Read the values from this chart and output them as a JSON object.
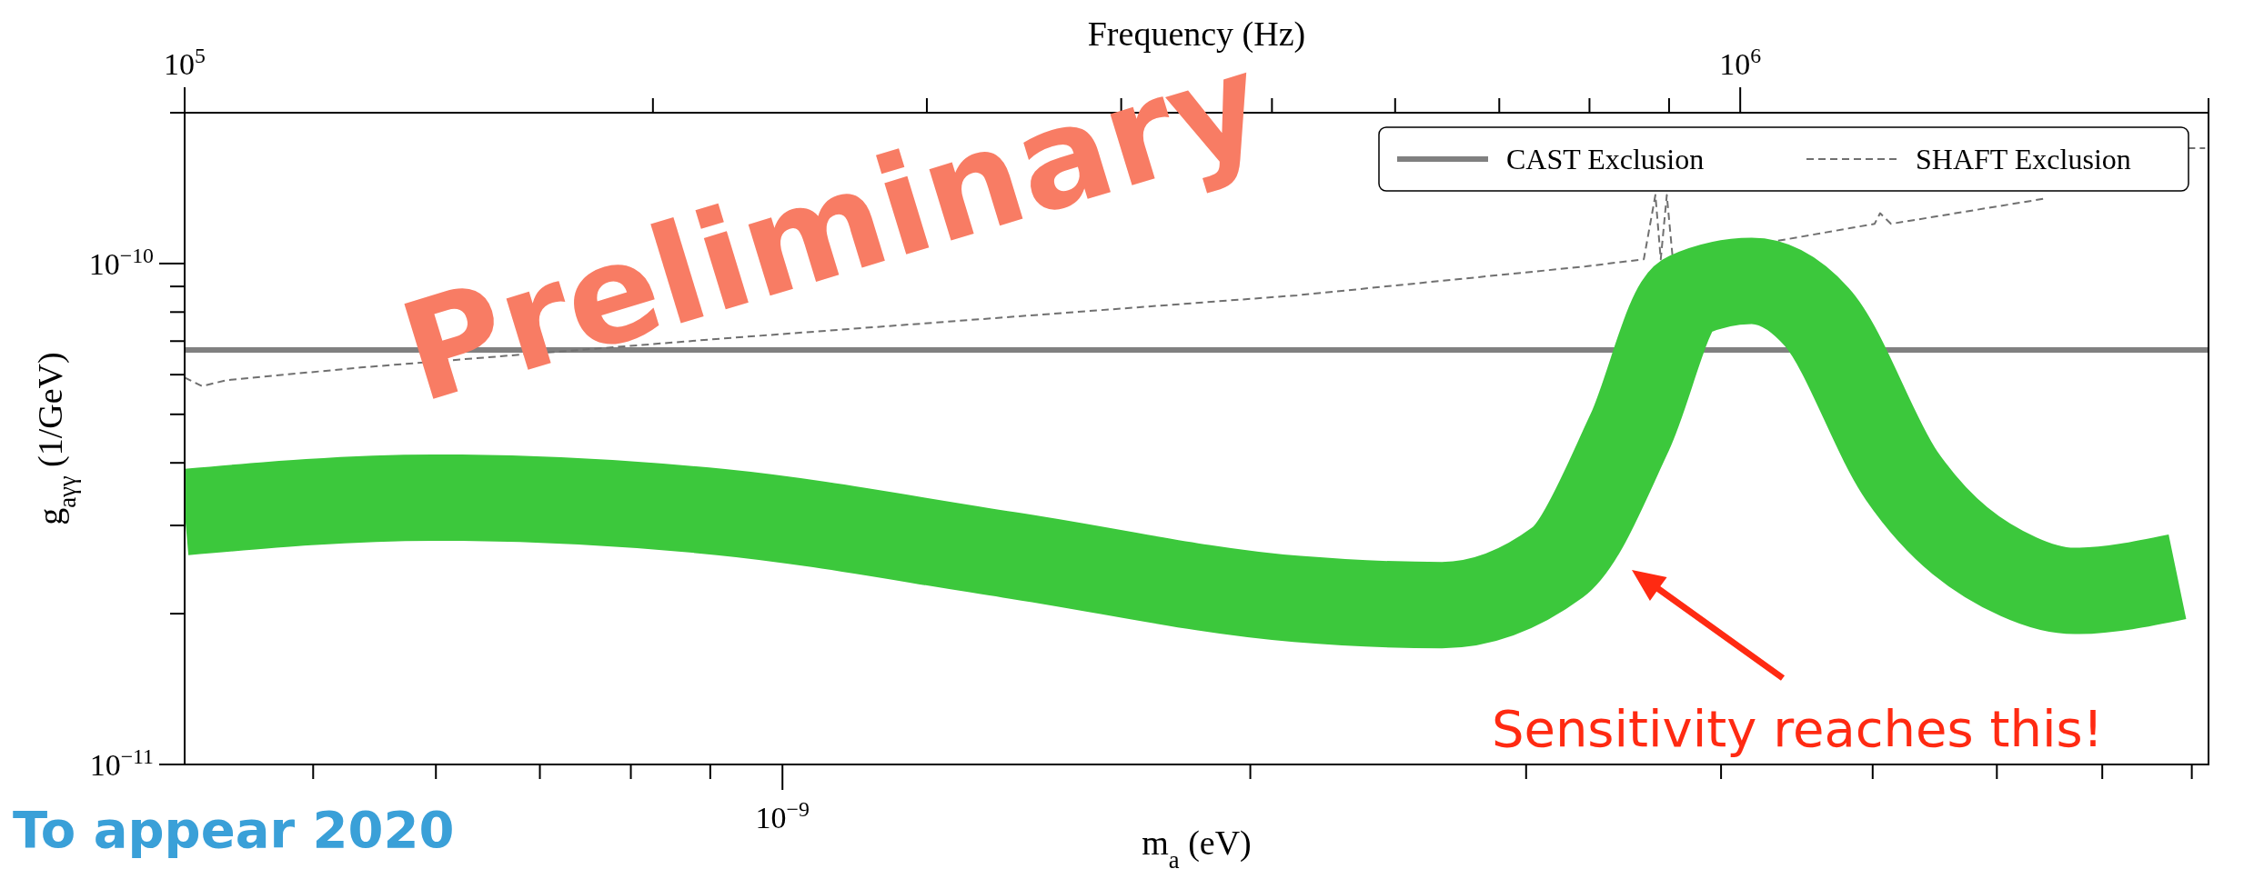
{
  "chart_data": {
    "type": "line",
    "xlabel": "Frequency (Hz)",
    "ylabel": "g$_{aγγ}$ (1/GeV)",
    "x2label": "m$_{a}$ (eV)",
    "log": "xy",
    "legend": "top right",
    "grid": false,
    "xlim": [
      100000.0,
      2000000.0
    ],
    "xticks": [
      {
        "value": 100000.0,
        "label": "10$^{5}$"
      },
      {
        "value": 200000.0,
        "label": null
      },
      {
        "value": 300000.0,
        "label": null
      },
      {
        "value": 400000.0,
        "label": null
      },
      {
        "value": 500000.0,
        "label": null
      },
      {
        "value": 600000.0,
        "label": null
      },
      {
        "value": 700000.0,
        "label": null
      },
      {
        "value": 800000.0,
        "label": null
      },
      {
        "value": 900000.0,
        "label": null
      },
      {
        "value": 1000000.0,
        "label": "10$^{6}$"
      },
      {
        "value": 2000000.0,
        "label": null
      }
    ],
    "ylim": [
      1e-11,
      2e-10
    ],
    "yticks": [
      {
        "value": 1e-11,
        "label": "10$^{−11}$"
      },
      {
        "value": 2e-11,
        "label": null
      },
      {
        "value": 3e-11,
        "label": null
      },
      {
        "value": 4e-11,
        "label": null
      },
      {
        "value": 5e-11,
        "label": null
      },
      {
        "value": 6e-11,
        "label": null
      },
      {
        "value": 7e-11,
        "label": null
      },
      {
        "value": 8e-11,
        "label": null
      },
      {
        "value": 9e-11,
        "label": null
      },
      {
        "value": 1e-10,
        "label": "10$^{−10}$"
      },
      {
        "value": 2e-10,
        "label": null
      }
    ],
    "series": [
      {
        "name": "CAST Exclusion",
        "color": "#808080",
        "line_style": "solid",
        "x": [
          100000.0,
          2000000.0
        ],
        "values": [
          6.72e-11,
          6.72e-11
        ]
      },
      {
        "name": "SHAFT Exclusion",
        "color": "#707070",
        "line_style": "dashed",
        "x": [
          100000.0,
          102600.0,
          106400.0,
          129700.0,
          221200.0,
          339000.0,
          519000.0,
          796000.0,
          867000.0,
          882000.0,
          889000.0,
          897000.0,
          905000.0,
          1220000.0,
          1230000.0,
          1250000.0,
          1575000.0,
          1750000.0,
          1940000.0,
          1990000.0
        ],
        "values": [
          5.92e-11,
          5.69e-11,
          5.85e-11,
          6.2e-11,
          7.08e-11,
          7.82e-11,
          8.64e-11,
          9.87e-11,
          1.02e-10,
          1.37e-10,
          1.02e-10,
          1.37e-10,
          1.02e-10,
          1.2e-10,
          1.26e-10,
          1.2e-10,
          1.35e-10,
          null,
          1.7e-10,
          1.7e-10
        ]
      },
      {
        "color": "#3cc83c",
        "line_style": "solid",
        "x": [
          100000.0,
          144400.0,
          221200.0,
          339000.0,
          519000.0,
          643000.0,
          763000.0,
          849000.0,
          924000.0,
          1017000.0,
          1120000.0,
          1270000.0,
          1510000.0,
          1640000.0,
          1910000.0
        ],
        "values": [
          3.19e-11,
          3.41e-11,
          3.19e-11,
          2.62e-11,
          2.14e-11,
          2.08e-11,
          2.53e-11,
          4.6e-11,
          8.64e-11,
          9.23e-11,
          7.82e-11,
          3.77e-11,
          2.37e-11,
          2.22e-11,
          2.37e-11
        ]
      }
    ],
    "annotations": [
      "Preliminary",
      "Sensitivity reaches this!",
      "To appear 2020",
      "10$^{−9}$"
    ]
  }
}
